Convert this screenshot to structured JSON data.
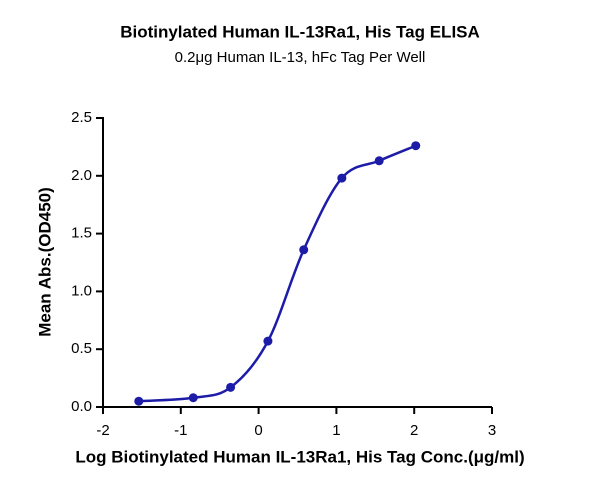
{
  "chart_data": {
    "type": "scatter",
    "title": "Biotinylated Human IL-13Ra1, His Tag ELISA",
    "subtitle": "0.2μg Human IL-13, hFc Tag Per Well",
    "x_label": "Log Biotinylated Human IL-13Ra1, His Tag Conc.(μg/ml)",
    "y_label": "Mean Abs.(OD450)",
    "x": [
      -1.54,
      -0.84,
      -0.36,
      0.12,
      0.58,
      1.07,
      1.55,
      2.02
    ],
    "series": [
      {
        "color": "#1c1ca8",
        "values": [
          0.05,
          0.08,
          0.17,
          0.57,
          1.36,
          1.98,
          2.13,
          2.26
        ]
      }
    ],
    "xlim": [
      -2,
      3
    ],
    "xticks": [
      -2,
      -1,
      0,
      1,
      2,
      3
    ],
    "ylim": [
      0,
      2.5
    ],
    "yticks": [
      {
        "value": 0,
        "label": "0.0"
      },
      0.5,
      {
        "value": 1,
        "label": "1.0"
      },
      1.5,
      {
        "value": 2,
        "label": "2.0"
      },
      2.5
    ]
  }
}
